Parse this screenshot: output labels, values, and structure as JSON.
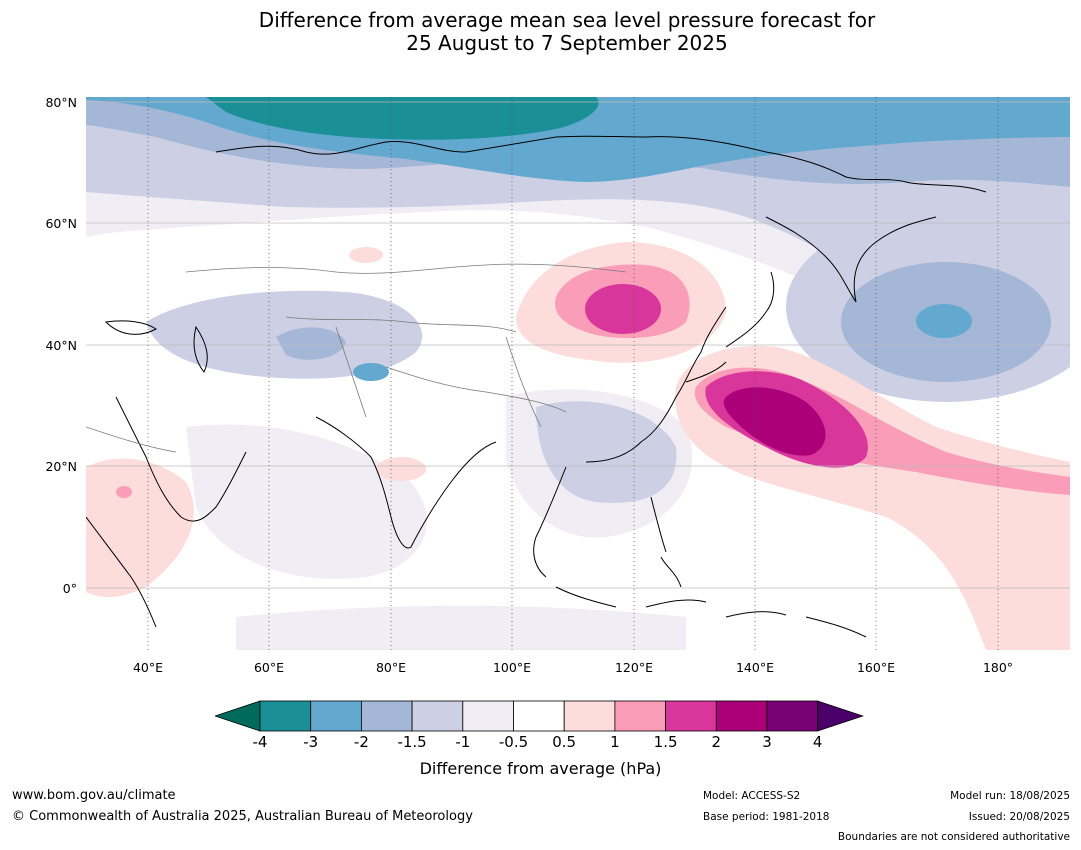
{
  "title_line1": "Difference from average mean sea level pressure forecast for",
  "title_line2": "25 August to 7 September 2025",
  "lat_labels": [
    "80°N",
    "60°N",
    "40°N",
    "20°N",
    "0°"
  ],
  "lon_labels": [
    "40°E",
    "60°E",
    "80°E",
    "100°E",
    "120°E",
    "140°E",
    "160°E",
    "180°"
  ],
  "colorbar": {
    "ticks": [
      "-4",
      "-3",
      "-2",
      "-1.5",
      "-1",
      "-0.5",
      "0.5",
      "1",
      "1.5",
      "2",
      "3",
      "4"
    ],
    "colors": [
      "#006b5c",
      "#1a9096",
      "#62a8cf",
      "#a4b7d6",
      "#cdd0e5",
      "#f1edf4",
      "#ffffff",
      "#fddcdc",
      "#f99db8",
      "#d9369b",
      "#ac0079",
      "#790075",
      "#4a0068"
    ],
    "label": "Difference from average (hPa)"
  },
  "footer": {
    "website": "www.bom.gov.au/climate",
    "copyright": "© Commonwealth of Australia 2025, Australian Bureau of Meteorology",
    "model": "Model: ACCESS-S2",
    "base_period": "Base period: 1981-2018",
    "model_run": "Model run: 18/08/2025",
    "issued": "Issued: 20/08/2025",
    "disclaimer": "Boundaries are not considered authoritative"
  }
}
